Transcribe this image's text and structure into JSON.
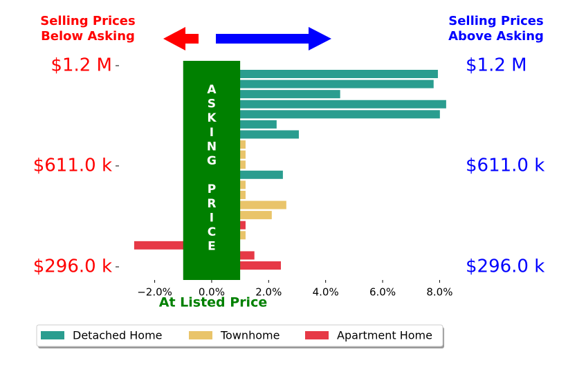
{
  "chart_data": {
    "type": "hbar",
    "categories": [
      null,
      null,
      null,
      null,
      null,
      null,
      null,
      null,
      null,
      null,
      null,
      null,
      null,
      null,
      null,
      null,
      null,
      null,
      null,
      null
    ],
    "series": [
      {
        "name": "Detached Home",
        "color": "#2a9d8f",
        "values": [
          7.94,
          7.79,
          4.51,
          8.23,
          8.01,
          2.28,
          3.06,
          null,
          null,
          null,
          2.5,
          null,
          null,
          null,
          null,
          null,
          null,
          null,
          null,
          null
        ]
      },
      {
        "name": "Townhome",
        "color": "#e9c46a",
        "values": [
          null,
          null,
          null,
          null,
          null,
          null,
          null,
          1.19,
          1.19,
          1.19,
          null,
          1.19,
          1.19,
          2.62,
          2.11,
          null,
          1.19,
          null,
          null,
          null
        ]
      },
      {
        "name": "Apartment Home",
        "color": "#e63946",
        "values": [
          null,
          null,
          null,
          null,
          null,
          null,
          null,
          null,
          null,
          null,
          null,
          null,
          null,
          null,
          null,
          1.19,
          null,
          -2.72,
          1.5,
          2.43
        ]
      }
    ],
    "xlim": [
      -2.9,
      8.5
    ],
    "xticks": [
      {
        "value": -2,
        "label": "−2.0%"
      },
      {
        "value": 0,
        "label": "0.0%"
      },
      {
        "value": 2,
        "label": "2.0%"
      },
      {
        "value": 4,
        "label": "4.0%"
      },
      {
        "value": 6,
        "label": "6.0%"
      },
      {
        "value": 8,
        "label": "8.0%"
      }
    ],
    "xlabel": "At Listed Price",
    "ytick_labels": [
      "$1.2 M",
      "$611.0 k",
      "$296.0 k"
    ],
    "y2tick_labels": [
      "$1.2 M",
      "$611.0 k",
      "$296.0 k"
    ],
    "asking_band": [
      -1,
      1
    ],
    "asking_label": "ASKING PRICE",
    "left_annotation": [
      "Selling Prices",
      "Below Asking"
    ],
    "right_annotation": [
      "Selling Prices",
      "Above Asking"
    ],
    "legend": "lower center"
  }
}
